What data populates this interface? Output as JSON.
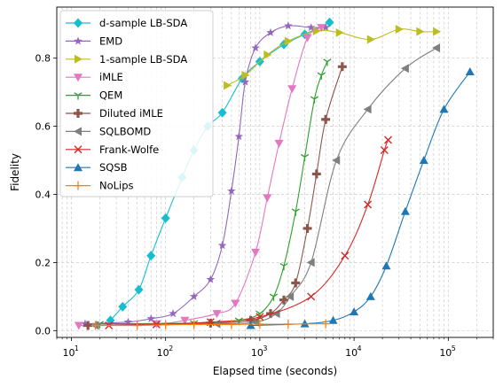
{
  "chart_data": {
    "type": "line",
    "title": "",
    "xlabel": "Elapsed time (seconds)",
    "ylabel": "Fidelity",
    "xscale": "log",
    "xlim": [
      7,
      300000
    ],
    "ylim": [
      -0.02,
      0.95
    ],
    "x_ticks": [
      {
        "value": 10,
        "label": "10^1"
      },
      {
        "value": 100,
        "label": "10^2"
      },
      {
        "value": 1000,
        "label": "10^3"
      },
      {
        "value": 10000,
        "label": "10^4"
      },
      {
        "value": 100000,
        "label": "10^5"
      }
    ],
    "y_ticks": [
      0.0,
      0.2,
      0.4,
      0.6,
      0.8
    ],
    "grid": true,
    "legend_position": "upper-left",
    "series": [
      {
        "name": "d-sample LB-SDA",
        "color": "#17becf",
        "marker": "diamond",
        "x": [
          26,
          35,
          52,
          70,
          100,
          150,
          200,
          280,
          400,
          650,
          1000,
          1800,
          3000,
          5500
        ],
        "y": [
          0.03,
          0.07,
          0.12,
          0.22,
          0.33,
          0.45,
          0.53,
          0.6,
          0.64,
          0.74,
          0.79,
          0.84,
          0.87,
          0.905
        ]
      },
      {
        "name": "EMD",
        "color": "#9467bd",
        "marker": "star",
        "x": [
          14,
          40,
          70,
          120,
          200,
          300,
          400,
          500,
          600,
          700,
          900,
          1300,
          2000,
          3500,
          5000
        ],
        "y": [
          0.02,
          0.025,
          0.035,
          0.05,
          0.1,
          0.15,
          0.25,
          0.41,
          0.57,
          0.73,
          0.83,
          0.875,
          0.895,
          0.89,
          0.89
        ]
      },
      {
        "name": "1-sample LB-SDA",
        "color": "#bcbd22",
        "marker": "triangle-right",
        "x": [
          450,
          700,
          1200,
          2000,
          4000,
          7000,
          15000,
          30000,
          50000,
          75000
        ],
        "y": [
          0.72,
          0.75,
          0.81,
          0.85,
          0.88,
          0.875,
          0.855,
          0.885,
          0.878,
          0.878
        ]
      },
      {
        "name": "iMLE",
        "color": "#e377c2",
        "marker": "triangle-down",
        "x": [
          12,
          80,
          160,
          350,
          550,
          900,
          1200,
          1600,
          2200,
          3200,
          4500
        ],
        "y": [
          0.015,
          0.02,
          0.03,
          0.05,
          0.08,
          0.23,
          0.39,
          0.55,
          0.71,
          0.86,
          0.89
        ]
      },
      {
        "name": "QEM",
        "color": "#2ca02c",
        "marker": "tri-down",
        "x": [
          20,
          200,
          600,
          1000,
          1400,
          1800,
          2400,
          3000,
          3800,
          4500,
          5200
        ],
        "y": [
          0.02,
          0.022,
          0.03,
          0.05,
          0.1,
          0.19,
          0.35,
          0.51,
          0.68,
          0.75,
          0.79
        ]
      },
      {
        "name": "Diluted iMLE",
        "color": "#8c564b",
        "marker": "plus-filled",
        "x": [
          15,
          300,
          800,
          1300,
          1800,
          2400,
          3200,
          4000,
          5000,
          7500
        ],
        "y": [
          0.015,
          0.022,
          0.03,
          0.05,
          0.09,
          0.14,
          0.3,
          0.46,
          0.62,
          0.775
        ]
      },
      {
        "name": "SQLBOMD",
        "color": "#7f7f7f",
        "marker": "triangle-left",
        "x": [
          18,
          350,
          900,
          1500,
          2100,
          3500,
          6500,
          14000,
          35000,
          75000
        ],
        "y": [
          0.015,
          0.02,
          0.025,
          0.05,
          0.1,
          0.2,
          0.5,
          0.65,
          0.77,
          0.83
        ]
      },
      {
        "name": "Frank-Wolfe",
        "color": "#d62728",
        "marker": "x",
        "x": [
          25,
          80,
          300,
          1000,
          3500,
          8000,
          14000,
          21000,
          23000
        ],
        "y": [
          0.015,
          0.018,
          0.025,
          0.04,
          0.1,
          0.22,
          0.37,
          0.53,
          0.56
        ]
      },
      {
        "name": "SQSB",
        "color": "#1f77b4",
        "marker": "triangle-up",
        "x": [
          800,
          3000,
          6000,
          10000,
          15000,
          22000,
          35000,
          55000,
          90000,
          170000
        ],
        "y": [
          0.015,
          0.02,
          0.03,
          0.055,
          0.1,
          0.19,
          0.35,
          0.5,
          0.65,
          0.76
        ]
      },
      {
        "name": "NoLips",
        "color": "#ff7f0e",
        "marker": "plus",
        "x": [
          18,
          50,
          100,
          200,
          500,
          1000,
          2000,
          5000
        ],
        "y": [
          0.015,
          0.015,
          0.017,
          0.018,
          0.018,
          0.019,
          0.019,
          0.02
        ]
      }
    ]
  }
}
